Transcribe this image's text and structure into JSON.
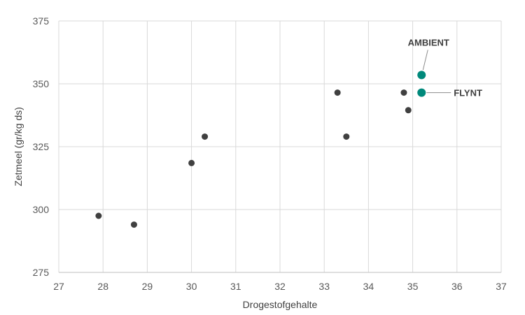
{
  "chart_data": {
    "type": "scatter",
    "title": "",
    "xlabel": "Drogestofgehalte",
    "ylabel": "Zetmeel (gr/kg ds)",
    "xlim": [
      27,
      37
    ],
    "ylim": [
      275,
      375
    ],
    "x_ticks": [
      27,
      28,
      29,
      30,
      31,
      32,
      33,
      34,
      35,
      36,
      37
    ],
    "y_ticks": [
      275,
      300,
      325,
      350,
      375
    ],
    "grid": true,
    "legend": "none",
    "colors": {
      "default_point": "#404040",
      "highlight_point": "#00897b",
      "grid": "#d9d9d9"
    },
    "points": [
      {
        "x": 27.9,
        "y": 297.5
      },
      {
        "x": 28.7,
        "y": 294
      },
      {
        "x": 30.0,
        "y": 318.5
      },
      {
        "x": 30.3,
        "y": 329
      },
      {
        "x": 33.3,
        "y": 346.5
      },
      {
        "x": 33.5,
        "y": 329
      },
      {
        "x": 34.8,
        "y": 346.5
      },
      {
        "x": 34.9,
        "y": 339.5
      },
      {
        "x": 35.2,
        "y": 353.5,
        "label": "AMBIENT",
        "highlight": true
      },
      {
        "x": 35.2,
        "y": 346.5,
        "label": "FLYNT",
        "highlight": true
      }
    ]
  }
}
